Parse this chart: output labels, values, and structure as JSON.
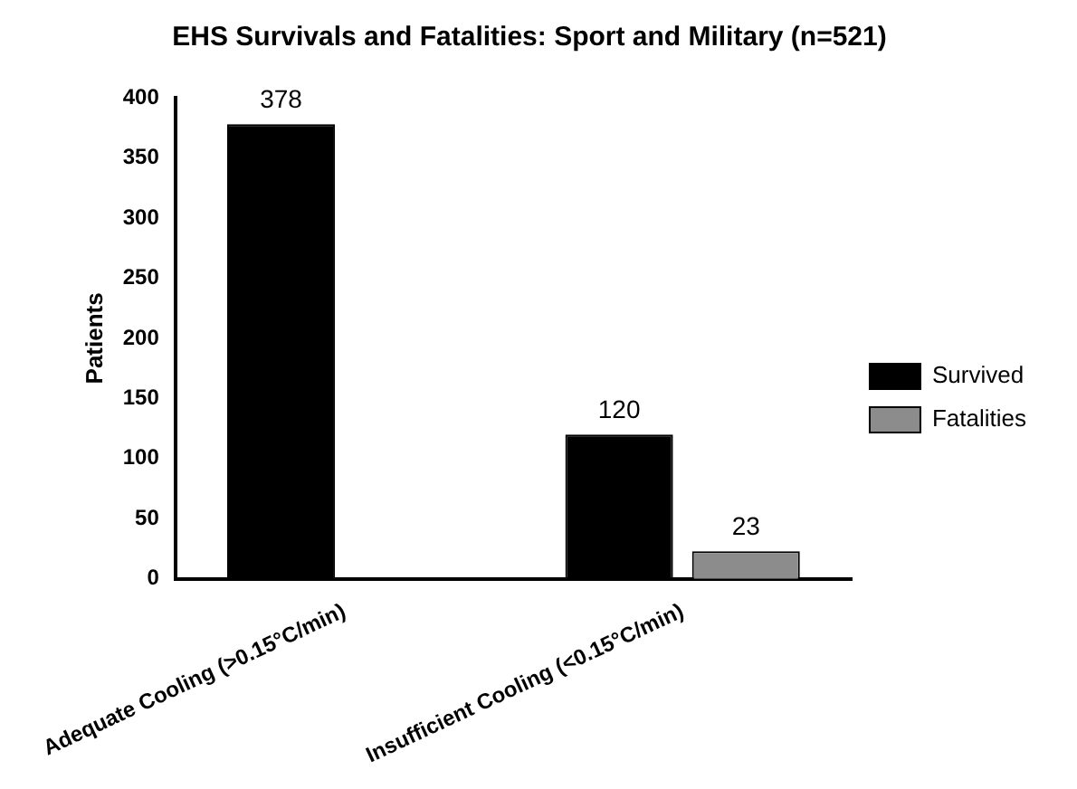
{
  "chart_data": {
    "type": "bar",
    "title": "EHS Survivals and Fatalities: Sport and Military (n=521)",
    "ylabel": "Patients",
    "categories": [
      "Adequate Cooling (>0.15°C/min)",
      "Insufficient Cooling (<0.15°C/min)"
    ],
    "series": [
      {
        "name": "Survived",
        "color": "#000000",
        "values": [
          378,
          120
        ],
        "value_labels": [
          "378",
          "120"
        ]
      },
      {
        "name": "Fatalities",
        "color": "#8c8c8c",
        "values": [
          0,
          23
        ],
        "value_labels": [
          null,
          "23"
        ]
      }
    ],
    "ylim": [
      0,
      400
    ],
    "yticks": [
      0,
      50,
      100,
      150,
      200,
      250,
      300,
      350,
      400
    ],
    "grid": false,
    "legend": "right"
  }
}
